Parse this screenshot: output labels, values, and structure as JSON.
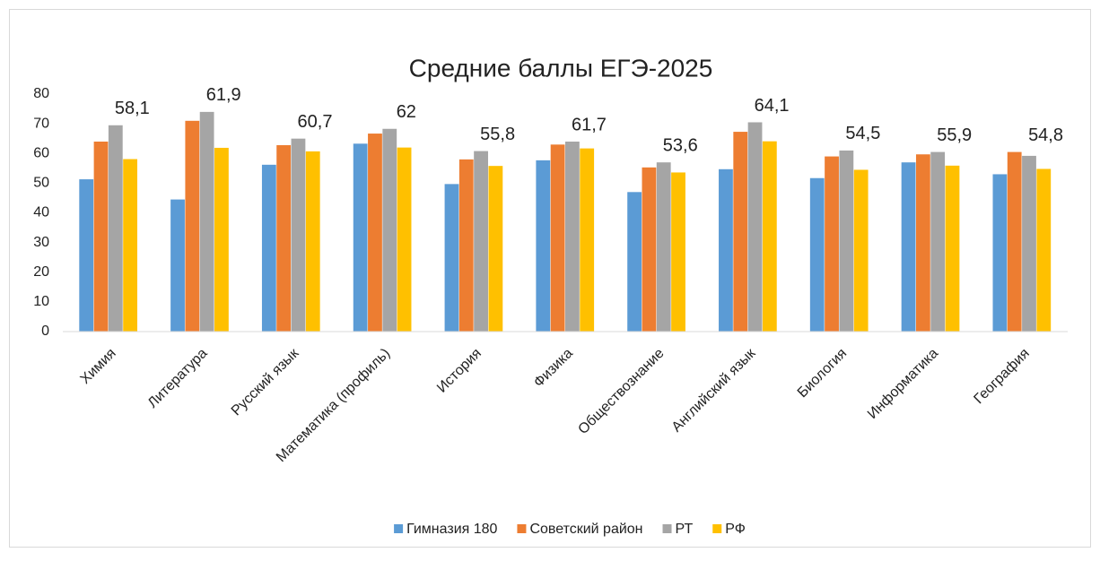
{
  "chart_data": {
    "type": "bar",
    "title": "Средние баллы ЕГЭ-2025",
    "categories": [
      "Химия",
      "Литература",
      "Русский язык",
      "Математика (профиль)",
      "История",
      "Физика",
      "Обществознание",
      "Английский язык",
      "Биология",
      "Информатика",
      "География"
    ],
    "series": [
      {
        "name": "Гимназия 180",
        "color": "#5b9bd5",
        "values": [
          51.3,
          44.5,
          56.2,
          63.3,
          49.7,
          57.7,
          47,
          54.7,
          51.7,
          57,
          53
        ]
      },
      {
        "name": "Советский район",
        "color": "#ed7d31",
        "values": [
          64,
          71,
          62.8,
          66.7,
          58,
          63,
          55.3,
          67.3,
          59,
          59.7,
          60.5
        ]
      },
      {
        "name": "РТ",
        "color": "#a5a5a5",
        "values": [
          69.5,
          74,
          65,
          68.3,
          60.8,
          64,
          57,
          70.5,
          61,
          60.5,
          59.2
        ]
      },
      {
        "name": "РФ",
        "color": "#ffc000",
        "values": [
          58.1,
          61.9,
          60.7,
          62,
          55.8,
          61.7,
          53.6,
          64.1,
          54.5,
          55.9,
          54.8
        ],
        "value_labels": [
          "58,1",
          "61,9",
          "60,7",
          "62",
          "55,8",
          "61,7",
          "53,6",
          "64,1",
          "54,5",
          "55,9",
          "54,8"
        ]
      }
    ],
    "ylim": [
      0,
      80
    ],
    "yticks": [
      0,
      10,
      20,
      30,
      40,
      50,
      60,
      70,
      80
    ],
    "grid": false,
    "legend": "bottom"
  }
}
